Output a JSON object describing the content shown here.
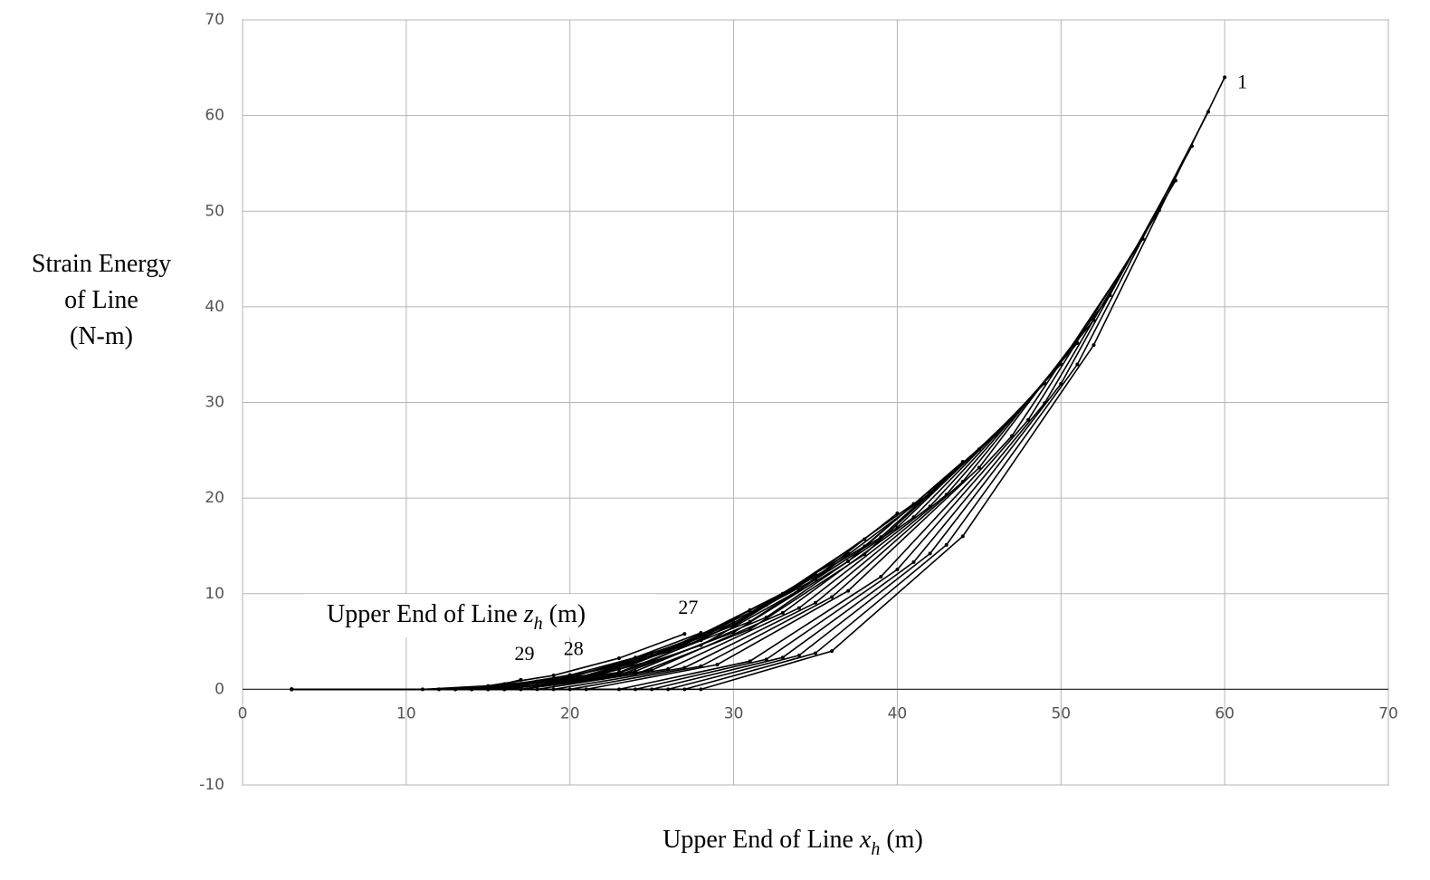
{
  "chart_data": {
    "type": "line",
    "xlabel": [
      "Upper End of Line ",
      "x",
      "h",
      " (m)"
    ],
    "ylabel": [
      "Strain Energy",
      "of Line",
      "(N-m)"
    ],
    "annotation": [
      "Upper End of Line ",
      "z",
      "h",
      " (m)"
    ],
    "xlim": [
      0,
      70
    ],
    "xticks": [
      0,
      10,
      20,
      30,
      40,
      50,
      60,
      70
    ],
    "ylim": [
      -10,
      70
    ],
    "yticks": [
      -10,
      0,
      10,
      20,
      30,
      40,
      50,
      60,
      70
    ],
    "grid": true,
    "color": "#000000",
    "series": [
      {
        "label": "1",
        "x": [
          3,
          28,
          36,
          44,
          52,
          60
        ],
        "values": [
          0,
          0,
          4,
          16,
          36,
          64
        ]
      },
      {
        "x": [
          3,
          27,
          35,
          43,
          51,
          59
        ],
        "values": [
          0,
          0,
          3.78,
          15.1,
          33.98,
          60.4
        ]
      },
      {
        "x": [
          3,
          26,
          34,
          42,
          50,
          58
        ],
        "values": [
          0,
          0,
          3.55,
          14.2,
          31.95,
          56.8
        ]
      },
      {
        "x": [
          3,
          25,
          33,
          41,
          49,
          57
        ],
        "values": [
          0,
          0,
          3.33,
          13.3,
          29.93,
          53.2
        ]
      },
      {
        "x": [
          3,
          24,
          32,
          40,
          48,
          56
        ],
        "values": [
          0,
          0,
          3.13,
          12.53,
          28.18,
          50.1
        ]
      },
      {
        "x": [
          3,
          23,
          31,
          39,
          47,
          55
        ],
        "values": [
          0,
          0,
          2.94,
          11.78,
          26.49,
          47.1
        ]
      },
      {
        "x": [
          3,
          21,
          29,
          37,
          45,
          53
        ],
        "values": [
          0,
          0,
          2.58,
          10.3,
          23.18,
          41.2
        ]
      },
      {
        "x": [
          3,
          20,
          28,
          36,
          44,
          52
        ],
        "values": [
          0,
          0,
          2.41,
          9.65,
          21.71,
          38.6
        ]
      },
      {
        "x": [
          3,
          19,
          27,
          35,
          43,
          51
        ],
        "values": [
          0,
          0,
          2.26,
          9.05,
          20.36,
          36.2
        ]
      },
      {
        "x": [
          3,
          18,
          26,
          34,
          42,
          50
        ],
        "values": [
          0,
          0,
          2.13,
          8.5,
          19.13,
          34
        ]
      },
      {
        "x": [
          3,
          17,
          25,
          33,
          41,
          49
        ],
        "values": [
          0,
          0,
          2,
          8,
          18,
          32
        ]
      },
      {
        "x": [
          3,
          16,
          24,
          32,
          40,
          48
        ],
        "values": [
          0,
          0,
          1.88,
          7.53,
          16.93,
          30.1
        ]
      },
      {
        "x": [
          3,
          15,
          23,
          31,
          39,
          47
        ],
        "values": [
          0,
          0,
          1.77,
          7.08,
          15.92,
          28.3
        ]
      },
      {
        "x": [
          3,
          14,
          22,
          30,
          38,
          46
        ],
        "values": [
          0,
          0,
          1.66,
          6.65,
          14.96,
          26.6
        ]
      },
      {
        "x": [
          3,
          17,
          24,
          31,
          38,
          45
        ],
        "values": [
          0,
          0,
          1.57,
          6.28,
          14.12,
          25.1
        ]
      },
      {
        "x": [
          3,
          16,
          23,
          30,
          37,
          44
        ],
        "values": [
          0,
          0,
          1.49,
          5.95,
          13.39,
          23.8
        ]
      },
      {
        "x": [
          3,
          14,
          21,
          28,
          35,
          42
        ],
        "values": [
          0,
          0,
          1.28,
          5.13,
          11.53,
          20.5
        ]
      },
      {
        "x": [
          3,
          13,
          20,
          27,
          34,
          41
        ],
        "values": [
          0,
          0,
          1.21,
          4.85,
          10.91,
          19.4
        ]
      },
      {
        "x": [
          3,
          16,
          22,
          28,
          34,
          40
        ],
        "values": [
          0,
          0,
          1.15,
          4.6,
          10.35,
          18.4
        ]
      },
      {
        "x": [
          3,
          14,
          20,
          26,
          32,
          38
        ],
        "values": [
          0,
          0,
          0.98,
          3.93,
          8.83,
          15.7
        ]
      },
      {
        "x": [
          3,
          13,
          19,
          25,
          31,
          37
        ],
        "values": [
          0,
          0,
          0.89,
          3.55,
          7.99,
          14.2
        ]
      },
      {
        "x": [
          3,
          15,
          20,
          25,
          30,
          35
        ],
        "values": [
          0,
          0,
          0.75,
          3,
          6.75,
          12
        ]
      },
      {
        "x": [
          3,
          13,
          18,
          23,
          28,
          33
        ],
        "values": [
          0,
          0,
          0.63,
          2.5,
          5.63,
          10
        ]
      },
      {
        "x": [
          3,
          15,
          19,
          23,
          27,
          31
        ],
        "values": [
          0,
          0,
          0.52,
          2.08,
          4.67,
          8.3
        ]
      },
      {
        "x": [
          3,
          14,
          18,
          22,
          26,
          30
        ],
        "values": [
          0,
          0,
          0.44,
          1.75,
          3.94,
          7
        ]
      },
      {
        "x": [
          3,
          12,
          16,
          20,
          24,
          28
        ],
        "values": [
          0,
          0,
          0.37,
          1.48,
          3.32,
          5.9
        ]
      },
      {
        "label": "27",
        "x": [
          3,
          11,
          15,
          19,
          23,
          27
        ],
        "values": [
          0,
          0,
          0.36,
          1.45,
          3.26,
          5.8
        ]
      },
      {
        "label": "28",
        "x": [
          3,
          12,
          14,
          16,
          18,
          20
        ],
        "values": [
          0,
          0,
          0.09,
          0.38,
          0.84,
          1.5
        ]
      },
      {
        "label": "29",
        "x": [
          3,
          13,
          14,
          15,
          16,
          17
        ],
        "values": [
          0,
          0,
          0.06,
          0.25,
          0.56,
          1
        ]
      }
    ]
  }
}
